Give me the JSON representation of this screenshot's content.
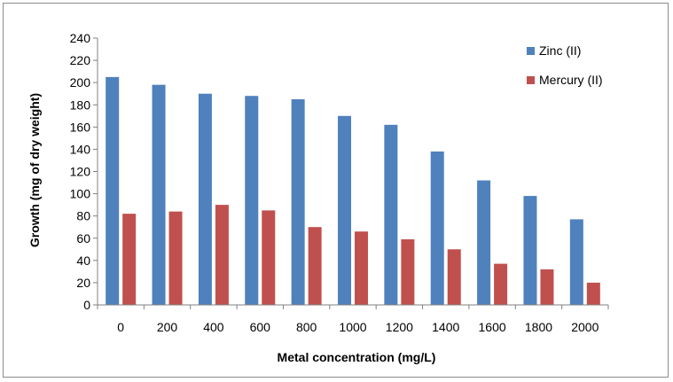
{
  "chart_data": {
    "type": "bar",
    "title": "",
    "xlabel": "Metal concentration (mg/L)",
    "ylabel": "Growth (mg of dry weight)",
    "categories": [
      "0",
      "200",
      "400",
      "600",
      "800",
      "1000",
      "1200",
      "1400",
      "1600",
      "1800",
      "2000"
    ],
    "series": [
      {
        "name": "Zinc (II)",
        "color": "#4f81bd",
        "values": [
          205,
          198,
          190,
          188,
          185,
          170,
          162,
          138,
          112,
          98,
          77
        ]
      },
      {
        "name": "Mercury (II)",
        "color": "#c0504d",
        "values": [
          82,
          84,
          90,
          85,
          70,
          66,
          59,
          50,
          37,
          32,
          20
        ]
      }
    ],
    "ylim": [
      0,
      240
    ],
    "yticks": [
      0,
      20,
      40,
      60,
      80,
      100,
      120,
      140,
      160,
      180,
      200,
      220,
      240
    ],
    "grid": false,
    "legend_position": "top-right"
  }
}
